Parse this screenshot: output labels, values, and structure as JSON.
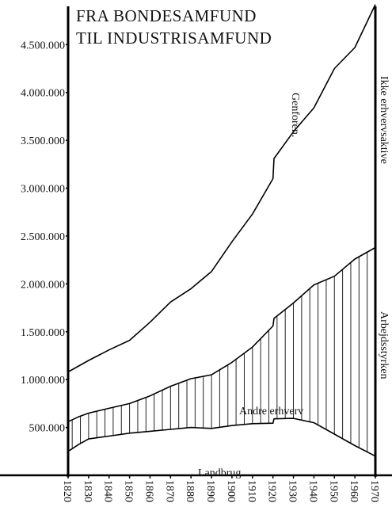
{
  "chart_data": {
    "type": "area",
    "title_lines": [
      "FRA BONDESAMFUND",
      "TIL INDUSTRISAMFUND"
    ],
    "x": [
      1820,
      1830,
      1840,
      1850,
      1860,
      1870,
      1880,
      1890,
      1900,
      1910,
      1920,
      1930,
      1940,
      1950,
      1960,
      1970
    ],
    "x_tick_labels": [
      "1820",
      "1830",
      "1840",
      "1850",
      "1860",
      "1870",
      "1880",
      "1890",
      "1900",
      "1910",
      "1920",
      "1930",
      "1940",
      "1950",
      "1960",
      "1970"
    ],
    "y_tick_labels": [
      "500.000",
      "1.000.000",
      "1.500.000",
      "2.000.000",
      "2.500.000",
      "3.000.000",
      "3.500.000",
      "4.000.000",
      "4.500.000"
    ],
    "y_ticks": [
      500000,
      1000000,
      1500000,
      2000000,
      2500000,
      3000000,
      3500000,
      4000000,
      4500000
    ],
    "ylim": [
      0,
      4900000
    ],
    "xlim": [
      1820,
      1970
    ],
    "series": [
      {
        "name": "Landbrug",
        "points": [
          [
            1820,
            250000
          ],
          [
            1825,
            320000
          ],
          [
            1830,
            380000
          ],
          [
            1840,
            410000
          ],
          [
            1850,
            440000
          ],
          [
            1860,
            460000
          ],
          [
            1870,
            480000
          ],
          [
            1880,
            500000
          ],
          [
            1890,
            490000
          ],
          [
            1900,
            520000
          ],
          [
            1910,
            540000
          ],
          [
            1920,
            545000
          ],
          [
            1920.5,
            590000
          ],
          [
            1930,
            595000
          ],
          [
            1940,
            550000
          ],
          [
            1950,
            430000
          ],
          [
            1960,
            310000
          ],
          [
            1970,
            200000
          ]
        ]
      },
      {
        "name": "Andre erhverv",
        "points": [
          [
            1820,
            560000
          ],
          [
            1825,
            610000
          ],
          [
            1830,
            650000
          ],
          [
            1840,
            700000
          ],
          [
            1850,
            750000
          ],
          [
            1860,
            830000
          ],
          [
            1870,
            930000
          ],
          [
            1880,
            1010000
          ],
          [
            1890,
            1050000
          ],
          [
            1900,
            1180000
          ],
          [
            1910,
            1340000
          ],
          [
            1920,
            1560000
          ],
          [
            1920.5,
            1640000
          ],
          [
            1930,
            1800000
          ],
          [
            1940,
            1990000
          ],
          [
            1950,
            2080000
          ],
          [
            1960,
            2260000
          ],
          [
            1970,
            2380000
          ]
        ]
      },
      {
        "name": "Genforen.",
        "points": [
          [
            1820,
            1080000
          ],
          [
            1830,
            1200000
          ],
          [
            1840,
            1310000
          ],
          [
            1850,
            1410000
          ],
          [
            1860,
            1600000
          ],
          [
            1870,
            1810000
          ],
          [
            1880,
            1950000
          ],
          [
            1890,
            2130000
          ],
          [
            1900,
            2440000
          ],
          [
            1910,
            2730000
          ],
          [
            1920,
            3100000
          ],
          [
            1920.5,
            3310000
          ],
          [
            1930,
            3590000
          ],
          [
            1940,
            3840000
          ],
          [
            1950,
            4250000
          ],
          [
            1960,
            4470000
          ],
          [
            1970,
            4920000
          ]
        ]
      }
    ],
    "annotations": [
      "Genforen.",
      "Andre erhverv",
      "Landbrug"
    ],
    "side_labels": [
      "Ikke erhvervsaktive",
      "Arbejdsstyrken"
    ],
    "hatching": "vertical lines between Landbrug and Andre erhverv",
    "grid": false,
    "legend": "none"
  }
}
